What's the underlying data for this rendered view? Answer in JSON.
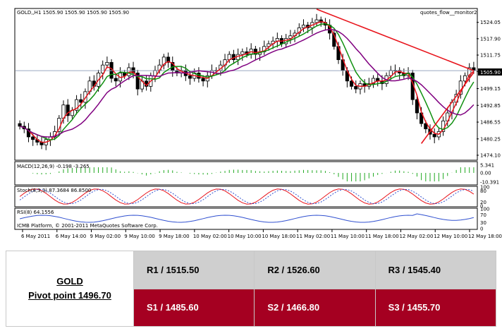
{
  "colors": {
    "support_bg": "#a50021",
    "resistance_bg": "#cfcfcf",
    "trend_line": "#e8141c",
    "ma_fast": "#e8141c",
    "ma_mid": "#109010",
    "ma_slow": "#800080"
  },
  "chart_data": {
    "type": "candlestick",
    "title": "GOLD,,H1 1505.90 1505.90 1505.90 1505.90",
    "indicator_label": "quotes_flow__monitor2",
    "current_price_label": "1505.90",
    "y_ticks": [
      "1524.05",
      "1517.90",
      "1511.75",
      "1505.60",
      "1499.15",
      "1492.85",
      "1486.55",
      "1480.25",
      "1474.10"
    ],
    "ylim": [
      1472.5,
      1529.0
    ],
    "x_ticks": [
      "6 May 2011",
      "6 May 14:00",
      "9 May 02:00",
      "9 May 10:00",
      "9 May 18:00",
      "10 May 02:00",
      "10 May 10:00",
      "10 May 18:00",
      "11 May 02:00",
      "11 May 10:00",
      "11 May 18:00",
      "12 May 02:00",
      "12 May 10:00",
      "12 May 18:00"
    ],
    "close": [
      1485,
      1484,
      1481,
      1480,
      1479,
      1478,
      1480,
      1481,
      1483,
      1488,
      1493,
      1489,
      1491,
      1495,
      1494,
      1498,
      1502,
      1500,
      1505,
      1508,
      1509,
      1503,
      1502,
      1505,
      1504,
      1507,
      1505,
      1499,
      1502,
      1500,
      1504,
      1506,
      1508,
      1511,
      1509,
      1506,
      1505,
      1506,
      1504,
      1503,
      1505,
      1503,
      1502,
      1504,
      1506,
      1506,
      1508,
      1510,
      1512,
      1510,
      1512,
      1513,
      1512,
      1514,
      1512,
      1513,
      1515,
      1516,
      1517,
      1518,
      1516,
      1518,
      1519,
      1520,
      1522,
      1523,
      1522,
      1524,
      1525,
      1524,
      1523,
      1520,
      1515,
      1510,
      1506,
      1502,
      1500,
      1499,
      1501,
      1500,
      1501,
      1503,
      1502,
      1501,
      1504,
      1506,
      1506,
      1505,
      1504,
      1505,
      1495,
      1490,
      1486,
      1484,
      1482,
      1481,
      1483,
      1487,
      1490,
      1494,
      1497,
      1502,
      1504,
      1507,
      1505.9
    ],
    "series": [
      {
        "name": "MA fast",
        "color": "#e8141c"
      },
      {
        "name": "MA mid",
        "color": "#109010"
      },
      {
        "name": "MA slow",
        "color": "#800080"
      }
    ],
    "panels": [
      {
        "label": "MACD(12,26,9) -0.198 -3.265",
        "ticks": [
          "5.341",
          "0.00",
          "-10.391"
        ]
      },
      {
        "label": "Stoch(8,3,3) 87.3684 86.8500",
        "ticks": [
          "100",
          "80",
          "20",
          "0"
        ]
      },
      {
        "label": "RSI(8) 64.1556",
        "ticks": [
          "100",
          "70",
          "30",
          "0"
        ]
      }
    ],
    "watermark": "ICMB Platform, © 2001-2011 MetaQuotes Software Corp."
  },
  "table": {
    "symbol": "GOLD",
    "pivot": "Pivot point 1496.70",
    "resistance": [
      "R1 / 1515.50",
      "R2 / 1526.60",
      "R3 / 1545.40"
    ],
    "support": [
      "S1 / 1485.60",
      "S2 / 1466.80",
      "S3 / 1455.70"
    ]
  }
}
